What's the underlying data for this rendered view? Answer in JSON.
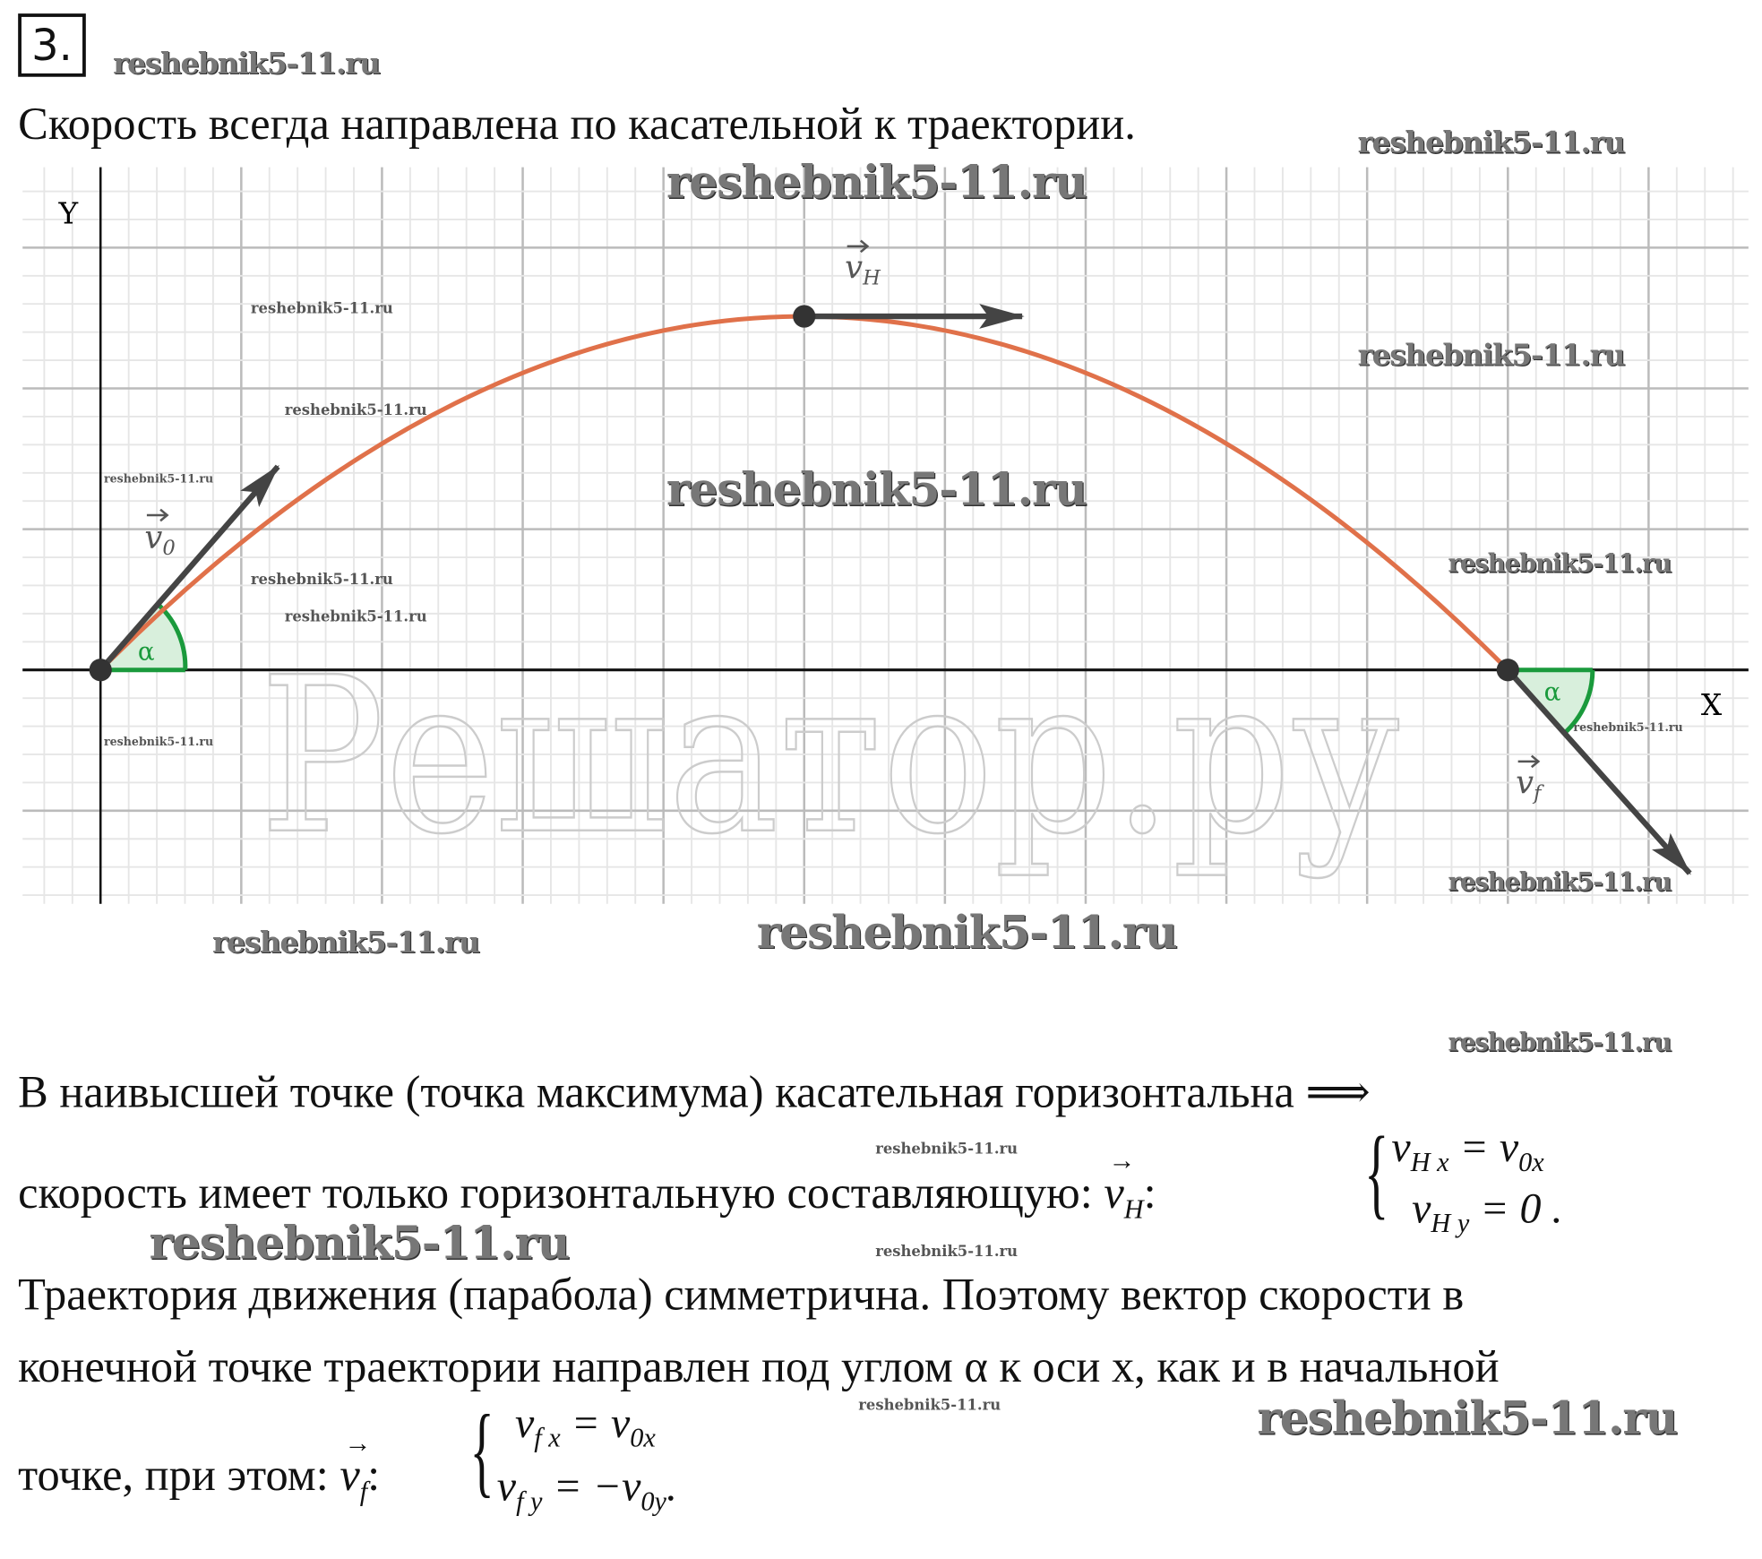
{
  "problem_number": "3.",
  "intro": "Скорость всегда направлена по касательной к траектории.",
  "figure": {
    "axis_y_label": "Y",
    "axis_x_label": "X",
    "angle_label": "α",
    "vector_v0": "v0",
    "vector_vH": "vH",
    "vector_vf": "vf",
    "trajectory_color": "#e0714a",
    "angle_color": "#1a9a3c",
    "big_watermark": "Решатор.ру"
  },
  "paragraphs": {
    "p1": "В наивысшей точке (точка максимума) касательная горизонтальна ⟹",
    "p2": "скорость имеет только горизонтальную составляющую:",
    "p2_vec": "v",
    "p2_sub": "H",
    "vH_eq1": "v",
    "vH_eq1_sub": "H x",
    "vH_eq1_rhs": "= v",
    "vH_eq1_rhs_sub": "0x",
    "vH_eq2": "v",
    "vH_eq2_sub": "H y",
    "vH_eq2_rhs": "= 0",
    "p3": "Траектория движения (парабола) симметрична. Поэтому вектор скорости в",
    "p4": "конечной точке траектории направлен под углом α к оси x, как и в начальной",
    "p5": "точке, при этом:",
    "p5_vec": "v",
    "p5_sub": "f",
    "vf_eq1": "v",
    "vf_eq1_sub": "f x",
    "vf_eq1_rhs": "= v",
    "vf_eq1_rhs_sub": "0x",
    "vf_eq2": "v",
    "vf_eq2_sub": "f y",
    "vf_eq2_rhs": "= −v",
    "vf_eq2_rhs_sub": "0y"
  },
  "watermark": "reshebnik5-11.ru"
}
